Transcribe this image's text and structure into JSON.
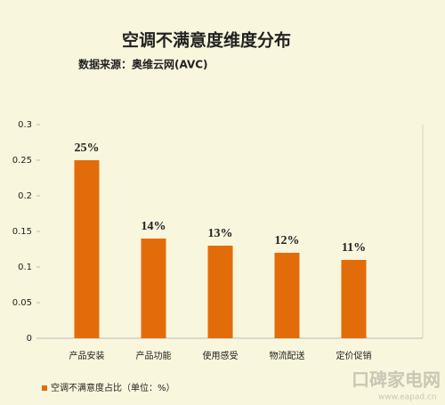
{
  "chart_data": {
    "type": "bar",
    "title": "空调不满意度维度分布",
    "subtitle": "数据来源：奥维云网(AVC)",
    "categories": [
      "产品安装",
      "产品功能",
      "使用感受",
      "物流配送",
      "定价促销"
    ],
    "series": [
      {
        "name": "空调不满意度占比（单位：%）",
        "color": "#e36c0a",
        "values": [
          0.25,
          0.14,
          0.13,
          0.12,
          0.11
        ],
        "value_labels": [
          "25%",
          "14%",
          "13%",
          "12%",
          "11%"
        ]
      }
    ],
    "ylim": [
      0,
      0.3
    ],
    "yticks": [
      0,
      0.05,
      0.1,
      0.15,
      0.2,
      0.25,
      0.3
    ],
    "grid": false,
    "watermark": "口碑家电网",
    "watermark_url": "www.eapad.cn"
  }
}
